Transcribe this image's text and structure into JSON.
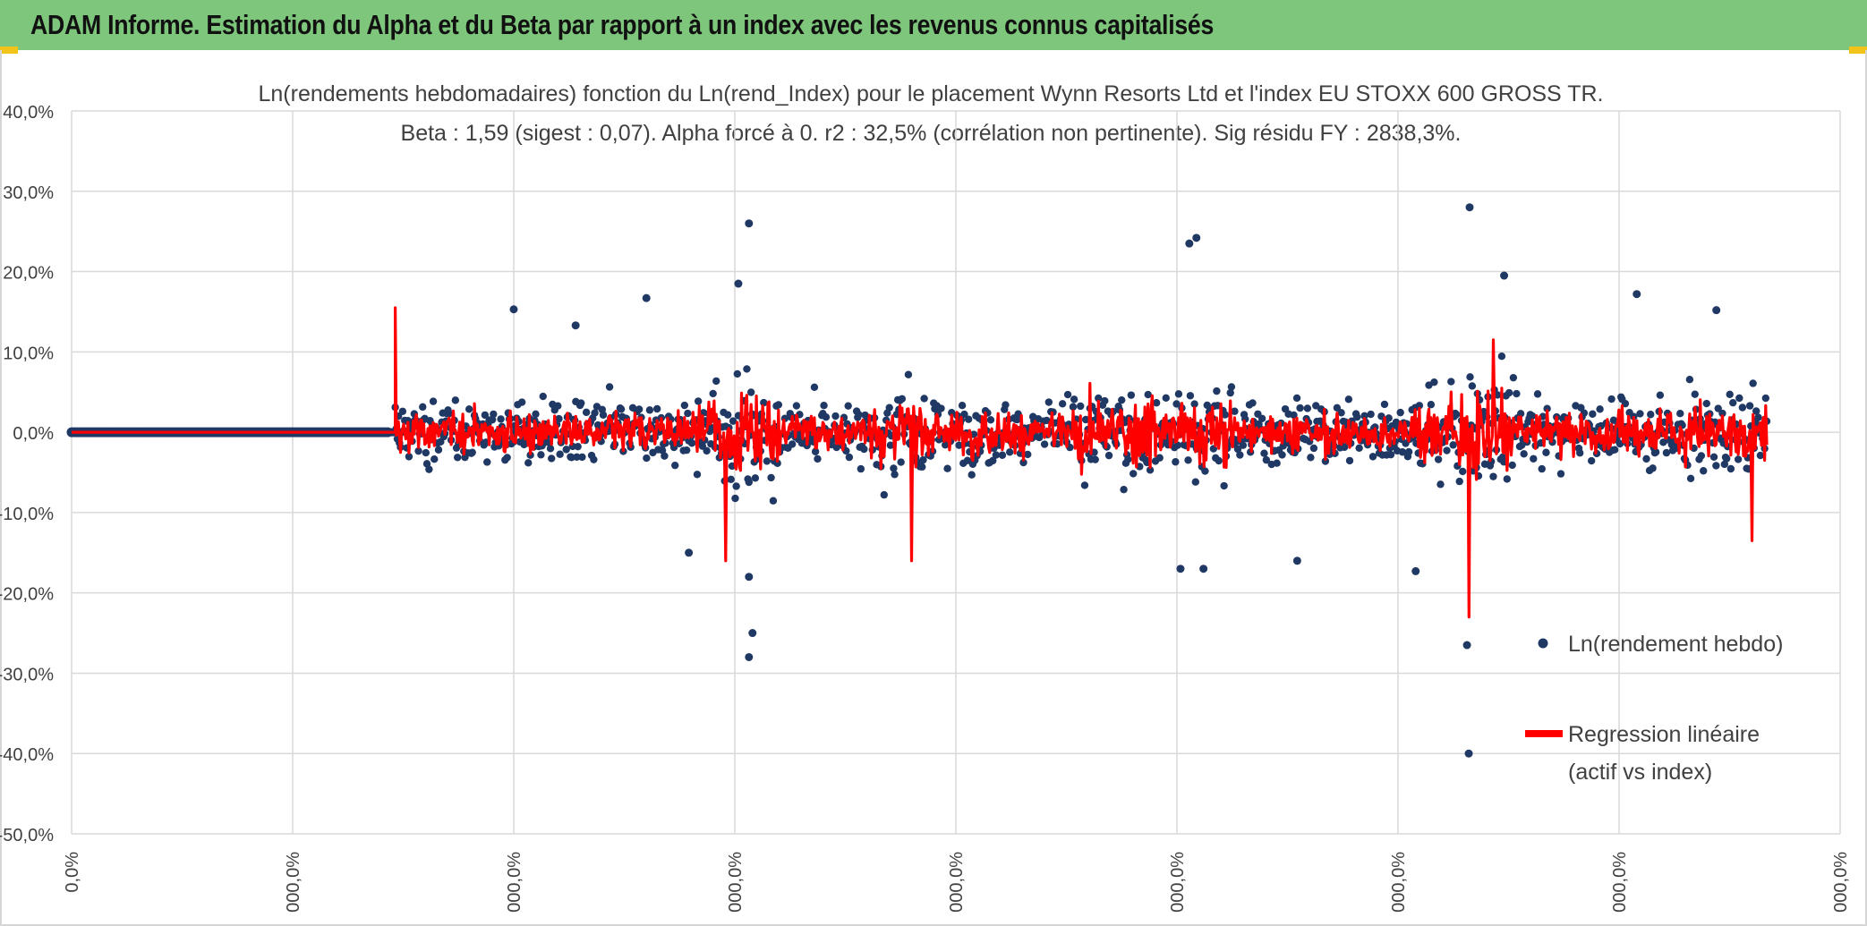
{
  "header": {
    "title": "ADAM Informe. Estimation du Alpha et du Beta par rapport à un index avec les revenus connus capitalisés"
  },
  "colors": {
    "banner": "#7dc67b",
    "points": "#203864",
    "regression": "#ff0000",
    "grid": "#d9d9d9"
  },
  "chart_data": {
    "type": "scatter",
    "title": "Ln(rendements hebdomadaires) fonction du Ln(rend_Index) pour le placement Wynn Resorts Ltd et l'index EU STOXX 600 GROSS TR.",
    "subtitle": "Beta : 1,59 (sigest : 0,07). Alpha forcé à 0. r2 : 32,5% (corrélation non pertinente). Sig résidu FY : 2838,3%.",
    "xlabel": "",
    "ylabel": "",
    "ylim": [
      -50,
      40
    ],
    "y_ticks": [
      "40,0%",
      "30,0%",
      "20,0%",
      "10,0%",
      "0,0%",
      "-10,0%",
      "-20,0%",
      "-30,0%",
      "-40,0%",
      "-50,0%"
    ],
    "x_ticks": [
      "0,0%",
      "000,0%",
      "000,0%",
      "000,0%",
      "000,0%",
      "000,0%",
      "000,0%",
      "000,0%",
      "000,0%"
    ],
    "grid": true,
    "legend_position": "right",
    "series": [
      {
        "name": "Ln(rendement hebdo)",
        "kind": "points",
        "notable_points": [
          {
            "x_index": 0.383,
            "y": 26.0
          },
          {
            "x_index": 0.383,
            "y": -28.0
          },
          {
            "x_index": 0.383,
            "y": -18.0
          },
          {
            "x_index": 0.385,
            "y": -25.0
          },
          {
            "x_index": 0.377,
            "y": 18.5
          },
          {
            "x_index": 0.632,
            "y": 23.5
          },
          {
            "x_index": 0.636,
            "y": 24.2
          },
          {
            "x_index": 0.627,
            "y": -17.0
          },
          {
            "x_index": 0.64,
            "y": -17.0
          },
          {
            "x_index": 0.7905,
            "y": 28.0
          },
          {
            "x_index": 0.79,
            "y": -40.0
          },
          {
            "x_index": 0.789,
            "y": -26.5
          },
          {
            "x_index": 0.81,
            "y": 19.5
          },
          {
            "x_index": 0.885,
            "y": 17.2
          },
          {
            "x_index": 0.93,
            "y": 15.2
          },
          {
            "x_index": 0.325,
            "y": 16.7
          },
          {
            "x_index": 0.25,
            "y": 15.3
          },
          {
            "x_index": 0.285,
            "y": 13.3
          },
          {
            "x_index": 0.349,
            "y": -15.0
          },
          {
            "x_index": 0.693,
            "y": -16.0
          },
          {
            "x_index": 0.76,
            "y": -17.3
          }
        ]
      },
      {
        "name": "Regression linéaire (actif vs index)",
        "name_lines": [
          "Regression linéaire",
          "(actif vs index)"
        ],
        "kind": "line",
        "notable_values": [
          {
            "x_index": 0.183,
            "y": 15.5
          },
          {
            "x_index": 0.37,
            "y": -16.0
          },
          {
            "x_index": 0.475,
            "y": -16.0
          },
          {
            "x_index": 0.79,
            "y": -23.0
          },
          {
            "x_index": 0.804,
            "y": 11.5
          },
          {
            "x_index": 0.95,
            "y": -13.5
          }
        ],
        "flat_segment": {
          "x_index_from": 0.0,
          "x_index_to": 0.18,
          "y": 0.0
        }
      }
    ]
  }
}
